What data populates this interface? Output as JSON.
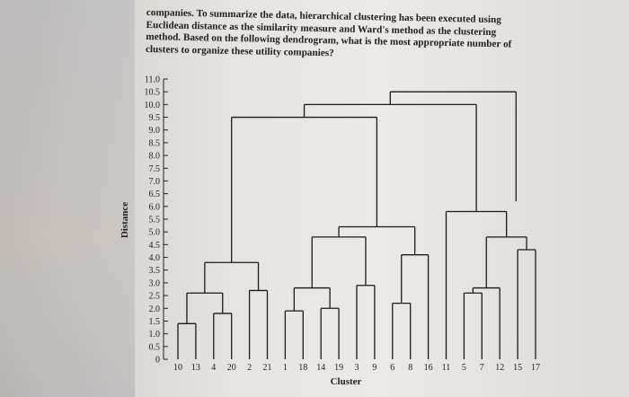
{
  "question": {
    "lines": [
      "companies. To summarize the data, hierarchical clustering has been executed using",
      "Euclidean distance as the similarity measure and Ward's method as the clustering",
      "method. Based on the following dendrogram, what is the most appropriate number of",
      "clusters to organize these utility companies?"
    ]
  },
  "chart_data": {
    "type": "dendrogram",
    "ylabel": "Distance",
    "xlabel": "Cluster",
    "ylim": [
      0,
      11
    ],
    "yticks": [
      "11.0",
      "10.5",
      "10.0",
      "9.5",
      "9.0",
      "8.5",
      "8.0",
      "7.5",
      "7.0",
      "6.5",
      "6.0",
      "5.5",
      "5.0",
      "4.5",
      "4.0",
      "3.5",
      "3.0",
      "2.5",
      "2.0",
      "1.5",
      "1.0",
      "0.5",
      "0"
    ],
    "leaves": [
      "10",
      "13",
      "4",
      "20",
      "2",
      "21",
      "1",
      "18",
      "14",
      "19",
      "3",
      "9",
      "6",
      "8",
      "16",
      "11",
      "5",
      "7",
      "12",
      "15",
      "17"
    ],
    "merges": [
      {
        "left": "10",
        "right": "13",
        "height": 1.4
      },
      {
        "left": "4",
        "right": "20",
        "height": 1.8
      },
      {
        "left": "{10,13}",
        "right": "{4,20}",
        "height": 2.6
      },
      {
        "left": "2",
        "right": "21",
        "height": 2.7
      },
      {
        "left": "{10,13,4,20}",
        "right": "{2,21}",
        "height": 3.8
      },
      {
        "left": "1",
        "right": "18",
        "height": 1.9
      },
      {
        "left": "14",
        "right": "19",
        "height": 2.0
      },
      {
        "left": "{1,18}",
        "right": "{14,19}",
        "height": 2.8
      },
      {
        "left": "3",
        "right": "9",
        "height": 2.9
      },
      {
        "left": "{1,18,14,19}",
        "right": "{3,9}",
        "height": 4.8
      },
      {
        "left": "6",
        "right": "8",
        "height": 2.2
      },
      {
        "left": "{6,8}",
        "right": "16",
        "height": 4.1
      },
      {
        "left": "{1,18,14,19,3,9}",
        "right": "{6,8,16}",
        "height": 5.2
      },
      {
        "left": "{10,13,4,20,2,21}",
        "right": "{1,18,14,19,3,9,6,8,16}",
        "height": 9.5
      },
      {
        "left": "5",
        "right": "7",
        "height": 2.6
      },
      {
        "left": "{5,7}",
        "right": "12",
        "height": 2.8
      },
      {
        "left": "15",
        "right": "17",
        "height": 4.3
      },
      {
        "left": "{5,7,12}",
        "right": "{15,17}",
        "height": 4.8
      },
      {
        "left": "11",
        "right": "{5,7,12,15,17}",
        "height": 5.8
      },
      {
        "left": "{10,13,4,20,2,21,1,18,14,19,3,9,6,8,16}",
        "right": "{11,5,7,12,15,17}",
        "height": 10.0
      },
      {
        "left": "{root-left}",
        "right": "{root}",
        "height": 10.5
      }
    ]
  }
}
